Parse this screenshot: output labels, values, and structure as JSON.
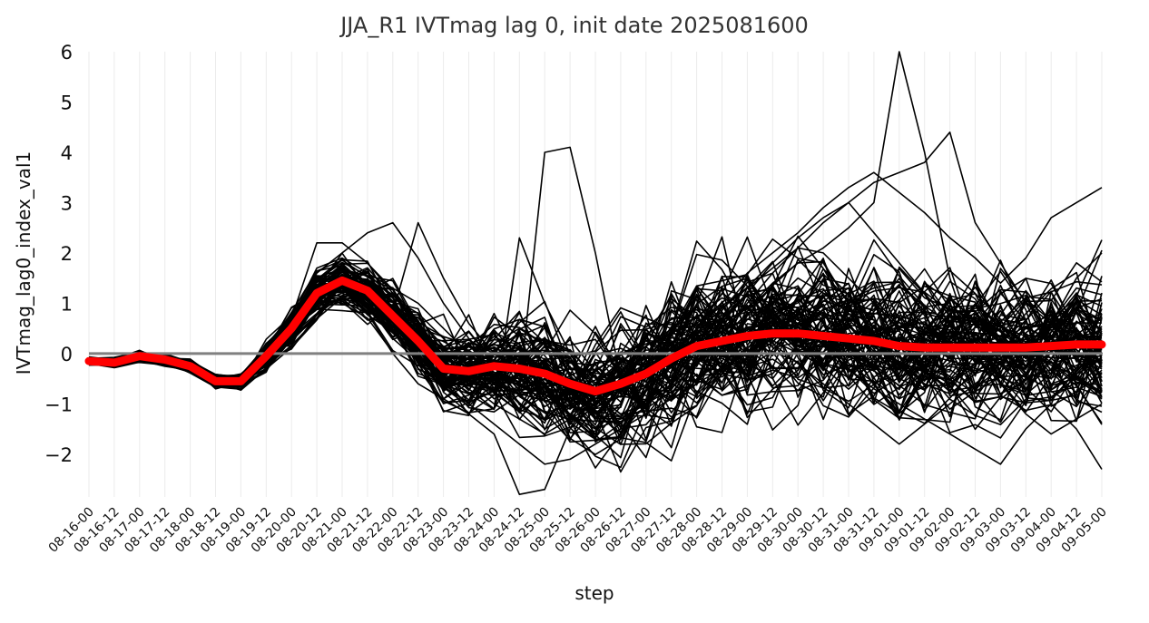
{
  "chart_data": {
    "type": "line",
    "title": "JJA_R1 IVTmag lag 0, init date 2025081600",
    "xlabel": "step",
    "ylabel": "IVTmag_lag0_index_val1",
    "categories": [
      "08-16-00",
      "08-16-12",
      "08-17-00",
      "08-17-12",
      "08-18-00",
      "08-18-12",
      "08-19-00",
      "08-19-12",
      "08-20-00",
      "08-20-12",
      "08-21-00",
      "08-21-12",
      "08-22-00",
      "08-22-12",
      "08-23-00",
      "08-23-12",
      "08-24-00",
      "08-24-12",
      "08-25-00",
      "08-25-12",
      "08-26-00",
      "08-26-12",
      "08-27-00",
      "08-27-12",
      "08-28-00",
      "08-28-12",
      "08-29-00",
      "08-29-12",
      "08-30-00",
      "08-30-12",
      "08-31-00",
      "08-31-12",
      "09-01-00",
      "09-01-12",
      "09-02-00",
      "09-02-12",
      "09-03-00",
      "09-03-12",
      "09-04-00",
      "09-04-12",
      "09-05-00"
    ],
    "ylim": [
      -2.85,
      6.0
    ],
    "yticks": [
      -2,
      -1,
      0,
      1,
      2,
      3,
      4,
      5,
      6
    ],
    "grid": "vertical",
    "ensemble_color": "#000000",
    "mean_color": "#ff0000",
    "zero_line_color": "#808080",
    "ensemble_mean": [
      -0.15,
      -0.18,
      -0.05,
      -0.12,
      -0.25,
      -0.55,
      -0.55,
      -0.05,
      0.5,
      1.2,
      1.45,
      1.25,
      0.75,
      0.25,
      -0.3,
      -0.35,
      -0.25,
      -0.3,
      -0.4,
      -0.6,
      -0.75,
      -0.6,
      -0.4,
      -0.1,
      0.15,
      0.25,
      0.35,
      0.4,
      0.4,
      0.35,
      0.3,
      0.25,
      0.15,
      0.12,
      0.12,
      0.12,
      0.12,
      0.12,
      0.15,
      0.18,
      0.18
    ],
    "members_count": 100,
    "members_highlight": [
      {
        "name": "",
        "values": [
          -0.12,
          -0.2,
          0.05,
          -0.1,
          -0.3,
          -0.6,
          -0.62,
          -0.1,
          0.6,
          1.6,
          2.0,
          2.4,
          2.6,
          1.9,
          1.0,
          0.3,
          -0.5,
          -0.8,
          -1.3,
          -0.9,
          -1.1,
          -0.6,
          -0.3,
          0.1,
          0.4,
          0.9,
          1.3,
          1.7,
          2.1,
          2.0,
          1.5,
          1.0,
          0.5,
          0.2,
          -0.1,
          -0.4,
          -0.2,
          0.3,
          0.7,
          0.4,
          0.2
        ]
      },
      {
        "name": "",
        "values": [
          -0.2,
          -0.1,
          0.0,
          -0.2,
          -0.35,
          -0.5,
          -0.45,
          0.0,
          0.55,
          1.2,
          1.4,
          1.6,
          1.1,
          0.8,
          0.3,
          -0.4,
          -0.9,
          -0.7,
          4.0,
          4.1,
          2.0,
          -0.5,
          -1.0,
          -0.7,
          -0.2,
          0.3,
          0.8,
          1.0,
          1.5,
          1.2,
          0.8,
          0.3,
          -0.2,
          -0.6,
          -0.8,
          -0.4,
          0.1,
          0.5,
          0.3,
          0.0,
          -0.2
        ]
      },
      {
        "name": "",
        "values": [
          -0.1,
          -0.25,
          -0.05,
          -0.15,
          -0.2,
          -0.55,
          -0.6,
          -0.15,
          0.45,
          1.1,
          1.3,
          0.8,
          0.0,
          -0.6,
          -0.9,
          -1.2,
          -1.6,
          -2.8,
          -2.7,
          -1.5,
          -1.0,
          -0.5,
          -0.2,
          -0.1,
          0.3,
          0.6,
          0.9,
          1.4,
          1.8,
          2.1,
          2.5,
          3.0,
          6.0,
          4.0,
          1.5,
          0.0,
          -0.8,
          -0.4,
          0.2,
          0.6,
          0.8
        ]
      },
      {
        "name": "",
        "values": [
          -0.15,
          -0.2,
          -0.1,
          -0.05,
          -0.3,
          -0.45,
          -0.5,
          0.1,
          0.7,
          1.7,
          1.9,
          1.6,
          1.3,
          1.0,
          0.5,
          0.0,
          -0.5,
          -1.0,
          -1.5,
          -1.2,
          -0.9,
          -0.5,
          -0.2,
          0.2,
          0.6,
          1.0,
          1.6,
          2.0,
          2.4,
          2.9,
          3.3,
          3.6,
          3.2,
          2.8,
          2.3,
          1.9,
          1.4,
          1.9,
          2.7,
          3.0,
          3.3
        ]
      },
      {
        "name": "",
        "values": [
          -0.2,
          -0.15,
          0.0,
          -0.1,
          -0.25,
          -0.6,
          -0.55,
          -0.2,
          0.4,
          1.0,
          1.2,
          1.0,
          0.6,
          0.0,
          -0.6,
          -1.0,
          -1.4,
          -1.8,
          -2.2,
          -2.1,
          -1.8,
          -1.5,
          -1.2,
          -0.9,
          -0.6,
          -0.3,
          0.0,
          0.3,
          0.6,
          0.2,
          -0.3,
          -0.7,
          -1.0,
          -1.3,
          -1.6,
          -1.9,
          -2.2,
          -1.5,
          -1.0,
          -1.5,
          -2.3
        ]
      },
      {
        "name": "",
        "values": [
          -0.1,
          -0.2,
          0.05,
          -0.15,
          -0.3,
          -0.65,
          -0.6,
          0.0,
          0.6,
          1.3,
          1.7,
          1.4,
          0.9,
          0.4,
          -0.2,
          -0.7,
          -1.1,
          2.3,
          1.0,
          0.0,
          -0.8,
          -1.2,
          -1.0,
          -0.6,
          -0.2,
          0.4,
          1.0,
          1.6,
          2.1,
          2.6,
          3.0,
          3.4,
          3.6,
          3.8,
          4.4,
          2.6,
          1.8,
          1.0,
          0.6,
          1.5,
          2.0
        ]
      },
      {
        "name": "",
        "values": [
          -0.18,
          -0.22,
          -0.08,
          -0.12,
          -0.28,
          -0.5,
          -0.5,
          0.05,
          0.7,
          2.2,
          2.2,
          1.8,
          1.2,
          0.6,
          -0.1,
          -0.6,
          -1.0,
          -1.3,
          -1.6,
          -1.3,
          -1.0,
          -0.6,
          -0.3,
          0.0,
          0.3,
          0.7,
          1.2,
          1.8,
          2.3,
          2.7,
          3.0,
          2.4,
          1.8,
          1.2,
          0.6,
          0.0,
          -0.6,
          -1.2,
          -1.6,
          -1.3,
          -1.0
        ]
      },
      {
        "name": "",
        "values": [
          -0.14,
          -0.18,
          -0.02,
          -0.08,
          -0.22,
          -0.58,
          -0.58,
          -0.05,
          0.5,
          1.1,
          1.5,
          1.3,
          0.8,
          2.6,
          1.5,
          0.6,
          0.0,
          -0.4,
          -0.8,
          -1.2,
          -1.5,
          -1.3,
          -1.0,
          -0.6,
          -0.2,
          0.2,
          0.5,
          0.2,
          -0.2,
          -0.6,
          -1.0,
          -1.4,
          -1.8,
          -1.4,
          -1.0,
          -0.6,
          -0.2,
          0.2,
          0.6,
          0.2,
          -0.2
        ]
      }
    ]
  }
}
